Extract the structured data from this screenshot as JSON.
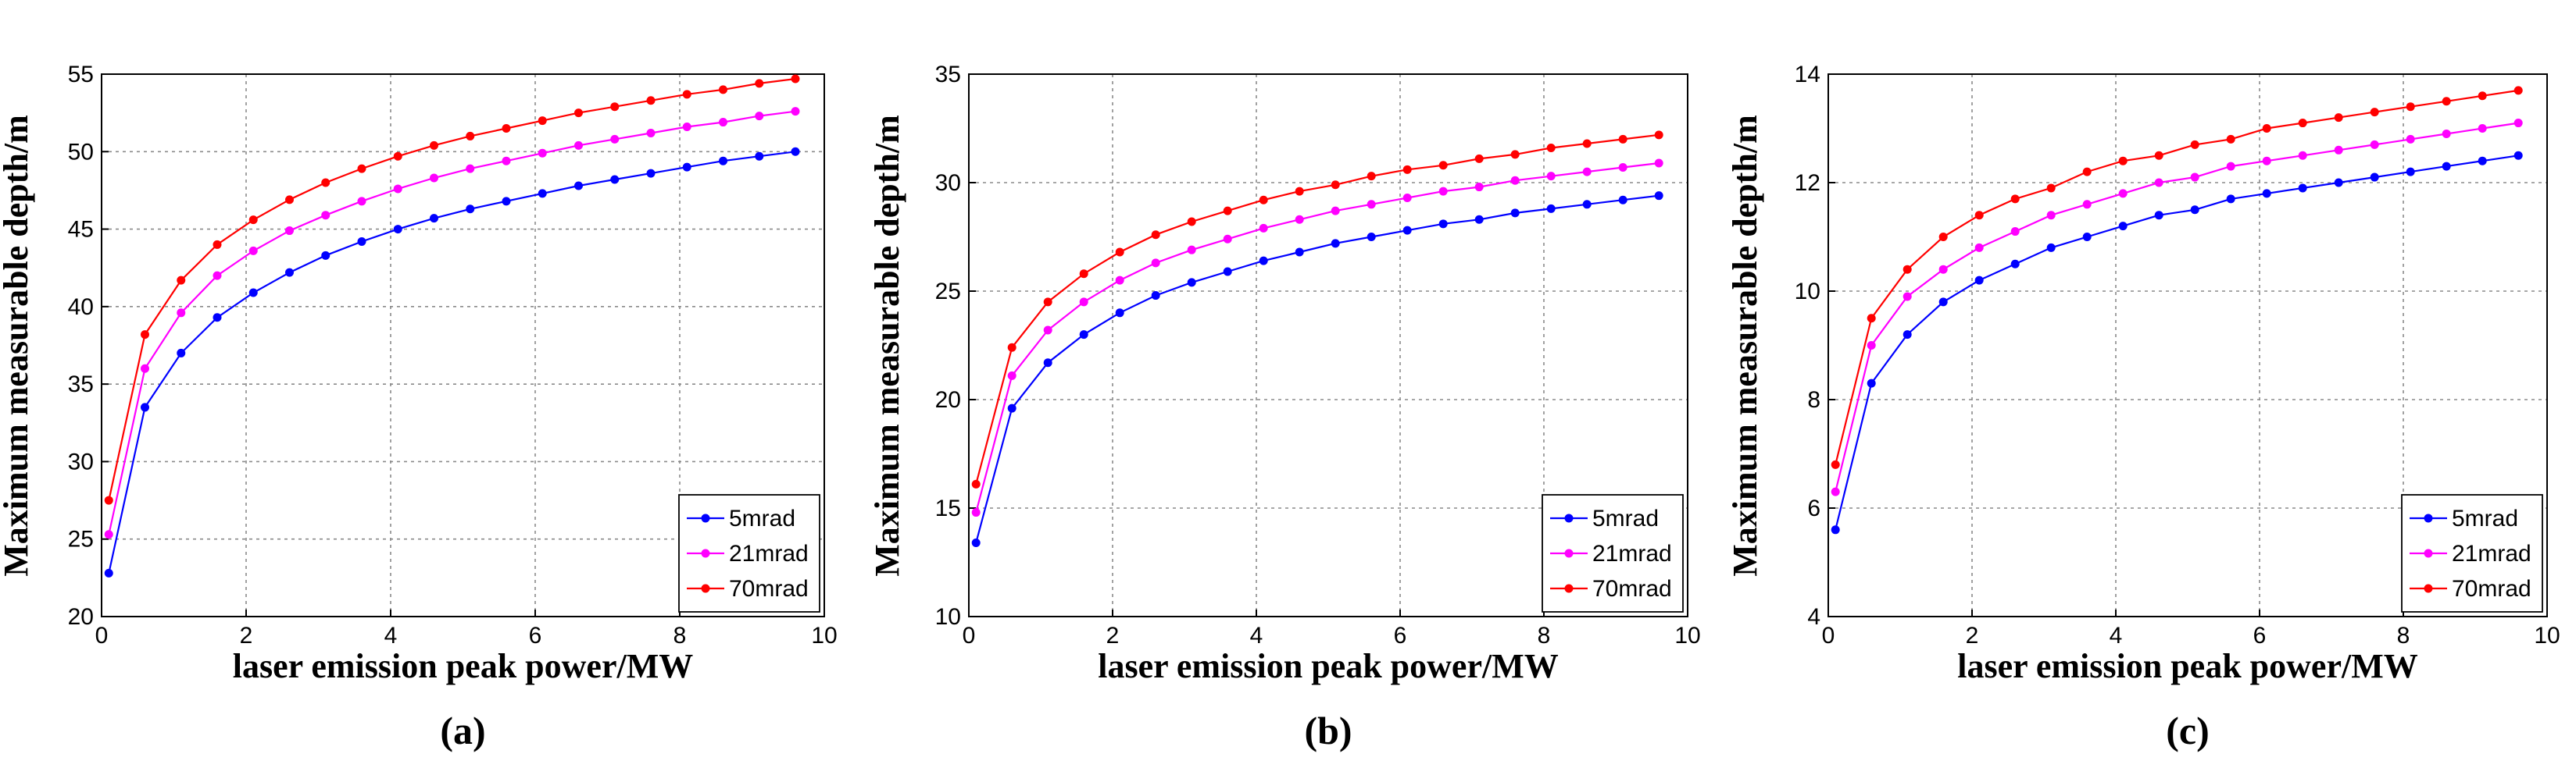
{
  "chart_data": [
    {
      "type": "line",
      "panel_label": "(a)",
      "xlabel": "laser emission peak power/MW",
      "ylabel": "Maximum measurable depth/m",
      "xlim": [
        0,
        10
      ],
      "ylim": [
        20,
        55
      ],
      "xticks": [
        0,
        2,
        4,
        6,
        8,
        10
      ],
      "yticks": [
        20,
        25,
        30,
        35,
        40,
        45,
        50,
        55
      ],
      "grid": true,
      "legend_position": "bottom-right",
      "x": [
        0.1,
        0.6,
        1.1,
        1.6,
        2.1,
        2.6,
        3.1,
        3.6,
        4.1,
        4.6,
        5.1,
        5.6,
        6.1,
        6.6,
        7.1,
        7.6,
        8.1,
        8.6,
        9.1,
        9.6
      ],
      "series": [
        {
          "name": "5mrad",
          "color": "#0000ff",
          "values": [
            22.8,
            33.5,
            37.0,
            39.3,
            40.9,
            42.2,
            43.3,
            44.2,
            45.0,
            45.7,
            46.3,
            46.8,
            47.3,
            47.8,
            48.2,
            48.6,
            49.0,
            49.4,
            49.7,
            50.0
          ]
        },
        {
          "name": "21mrad",
          "color": "#ff00ff",
          "values": [
            25.3,
            36.0,
            39.6,
            42.0,
            43.6,
            44.9,
            45.9,
            46.8,
            47.6,
            48.3,
            48.9,
            49.4,
            49.9,
            50.4,
            50.8,
            51.2,
            51.6,
            51.9,
            52.3,
            52.6
          ]
        },
        {
          "name": "70mrad",
          "color": "#ff0000",
          "values": [
            27.5,
            38.2,
            41.7,
            44.0,
            45.6,
            46.9,
            48.0,
            48.9,
            49.7,
            50.4,
            51.0,
            51.5,
            52.0,
            52.5,
            52.9,
            53.3,
            53.7,
            54.0,
            54.4,
            54.7
          ]
        }
      ]
    },
    {
      "type": "line",
      "panel_label": "(b)",
      "xlabel": "laser emission peak power/MW",
      "ylabel": "Maximum measurable depth/m",
      "xlim": [
        0,
        10
      ],
      "ylim": [
        10,
        35
      ],
      "xticks": [
        0,
        2,
        4,
        6,
        8,
        10
      ],
      "yticks": [
        10,
        15,
        20,
        25,
        30,
        35
      ],
      "grid": true,
      "legend_position": "bottom-right",
      "x": [
        0.1,
        0.6,
        1.1,
        1.6,
        2.1,
        2.6,
        3.1,
        3.6,
        4.1,
        4.6,
        5.1,
        5.6,
        6.1,
        6.6,
        7.1,
        7.6,
        8.1,
        8.6,
        9.1,
        9.6
      ],
      "series": [
        {
          "name": "5mrad",
          "color": "#0000ff",
          "values": [
            13.4,
            19.6,
            21.7,
            23.0,
            24.0,
            24.8,
            25.4,
            25.9,
            26.4,
            26.8,
            27.2,
            27.5,
            27.8,
            28.1,
            28.3,
            28.6,
            28.8,
            29.0,
            29.2,
            29.4
          ]
        },
        {
          "name": "21mrad",
          "color": "#ff00ff",
          "values": [
            14.8,
            21.1,
            23.2,
            24.5,
            25.5,
            26.3,
            26.9,
            27.4,
            27.9,
            28.3,
            28.7,
            29.0,
            29.3,
            29.6,
            29.8,
            30.1,
            30.3,
            30.5,
            30.7,
            30.9
          ]
        },
        {
          "name": "70mrad",
          "color": "#ff0000",
          "values": [
            16.1,
            22.4,
            24.5,
            25.8,
            26.8,
            27.6,
            28.2,
            28.7,
            29.2,
            29.6,
            29.9,
            30.3,
            30.6,
            30.8,
            31.1,
            31.3,
            31.6,
            31.8,
            32.0,
            32.2
          ]
        }
      ]
    },
    {
      "type": "line",
      "panel_label": "(c)",
      "xlabel": "laser emission peak power/MW",
      "ylabel": "Maximum measurable depth/m",
      "xlim": [
        0,
        10
      ],
      "ylim": [
        4,
        14
      ],
      "xticks": [
        0,
        2,
        4,
        6,
        8,
        10
      ],
      "yticks": [
        4,
        6,
        8,
        10,
        12,
        14
      ],
      "grid": true,
      "legend_position": "bottom-right",
      "x": [
        0.1,
        0.6,
        1.1,
        1.6,
        2.1,
        2.6,
        3.1,
        3.6,
        4.1,
        4.6,
        5.1,
        5.6,
        6.1,
        6.6,
        7.1,
        7.6,
        8.1,
        8.6,
        9.1,
        9.6
      ],
      "series": [
        {
          "name": "5mrad",
          "color": "#0000ff",
          "values": [
            5.6,
            8.3,
            9.2,
            9.8,
            10.2,
            10.5,
            10.8,
            11.0,
            11.2,
            11.4,
            11.5,
            11.7,
            11.8,
            11.9,
            12.0,
            12.1,
            12.2,
            12.3,
            12.4,
            12.5
          ]
        },
        {
          "name": "21mrad",
          "color": "#ff00ff",
          "values": [
            6.3,
            9.0,
            9.9,
            10.4,
            10.8,
            11.1,
            11.4,
            11.6,
            11.8,
            12.0,
            12.1,
            12.3,
            12.4,
            12.5,
            12.6,
            12.7,
            12.8,
            12.9,
            13.0,
            13.1
          ]
        },
        {
          "name": "70mrad",
          "color": "#ff0000",
          "values": [
            6.8,
            9.5,
            10.4,
            11.0,
            11.4,
            11.7,
            11.9,
            12.2,
            12.4,
            12.5,
            12.7,
            12.8,
            13.0,
            13.1,
            13.2,
            13.3,
            13.4,
            13.5,
            13.6,
            13.7
          ]
        }
      ]
    }
  ]
}
